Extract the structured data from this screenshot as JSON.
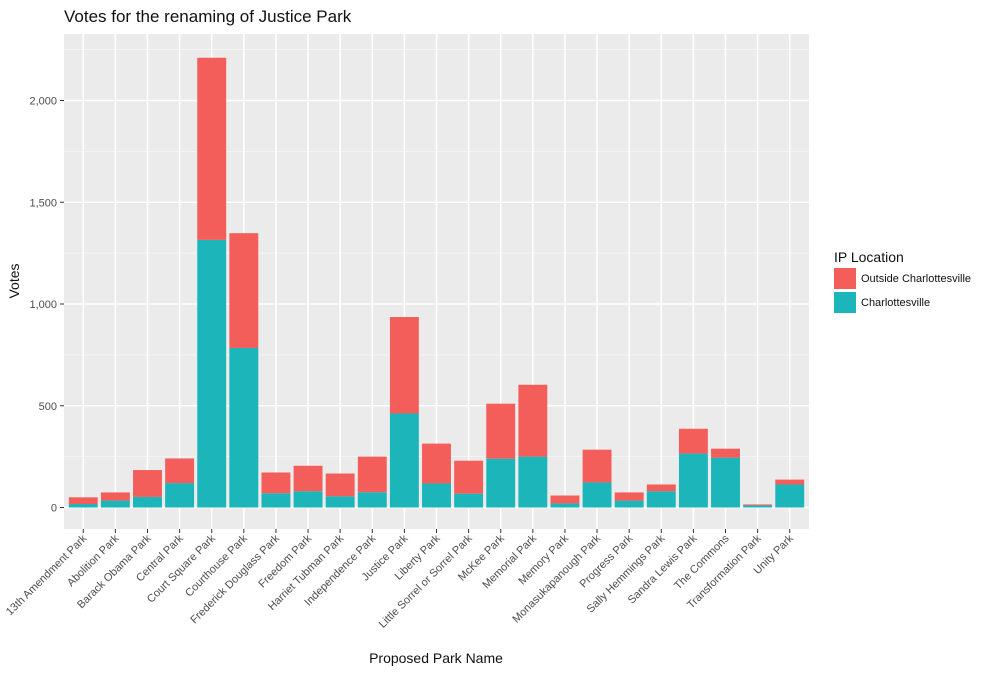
{
  "chart_data": {
    "type": "bar",
    "stacked": true,
    "title": "Votes for the renaming of Justice Park",
    "xlabel": "Proposed Park Name",
    "ylabel": "Votes",
    "ylim": [
      0,
      2320
    ],
    "yticks": [
      0,
      500,
      1000,
      1500,
      2000
    ],
    "ytick_labels": [
      "0",
      "500",
      "1,000",
      "1,500",
      "2,000"
    ],
    "grid": true,
    "legend": {
      "title": "IP Location",
      "position": "right",
      "entries": [
        "Outside Charlottesville",
        "Charlottesville"
      ]
    },
    "categories": [
      "13th Amendment Park",
      "Abolition Park",
      "Barack Obama Park",
      "Central Park",
      "Court Square Park",
      "Courthouse Park",
      "Frederick Douglass Park",
      "Freedom Park",
      "Harriet Tubman Park",
      "Independence Park",
      "Justice Park",
      "Liberty Park",
      "Little Sorrel or Sorrel Park",
      "McKee Park",
      "Memorial Park",
      "Memory Park",
      "Monasukapanough Park",
      "Progress Park",
      "Sally Hemmings Park",
      "Sandra Lewis Park",
      "The Commons",
      "Transformation Park",
      "Unity Park"
    ],
    "series": [
      {
        "name": "Charlottesville",
        "color": "#1BB5BA",
        "values": [
          17,
          34,
          52,
          120,
          1315,
          784,
          70,
          80,
          55,
          75,
          462,
          118,
          68,
          240,
          250,
          20,
          123,
          34,
          80,
          265,
          245,
          10,
          113
        ]
      },
      {
        "name": "Outside Charlottesville",
        "color": "#F35E5A",
        "values": [
          33,
          40,
          132,
          121,
          895,
          564,
          102,
          125,
          112,
          175,
          474,
          196,
          162,
          270,
          353,
          39,
          161,
          40,
          33,
          122,
          44,
          5,
          24
        ]
      }
    ]
  }
}
